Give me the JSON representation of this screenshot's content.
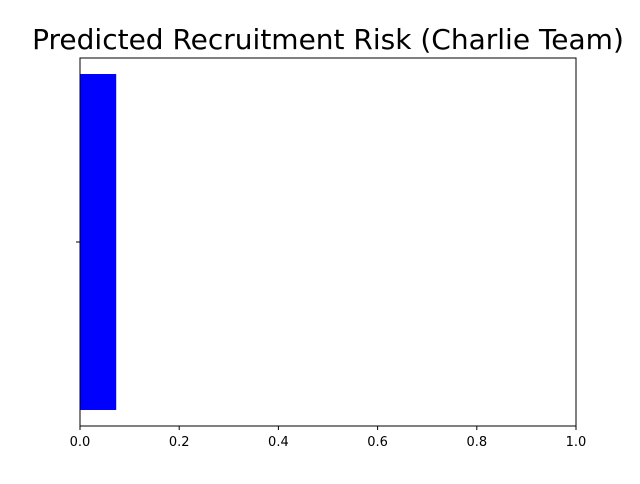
{
  "chart_data": {
    "type": "bar",
    "orientation": "horizontal",
    "title": "Predicted Recruitment Risk (Charlie Team)",
    "xlabel": "",
    "ylabel": "",
    "categories": [
      ""
    ],
    "values": [
      0.073
    ],
    "xlim": [
      0,
      1
    ],
    "xticks": [
      0.0,
      0.2,
      0.4,
      0.6,
      0.8,
      1.0
    ],
    "xtick_labels": [
      "0.0",
      "0.2",
      "0.4",
      "0.6",
      "0.8",
      "1.0"
    ],
    "bar_color": "#0000ff",
    "grid": false,
    "legend": "none"
  }
}
